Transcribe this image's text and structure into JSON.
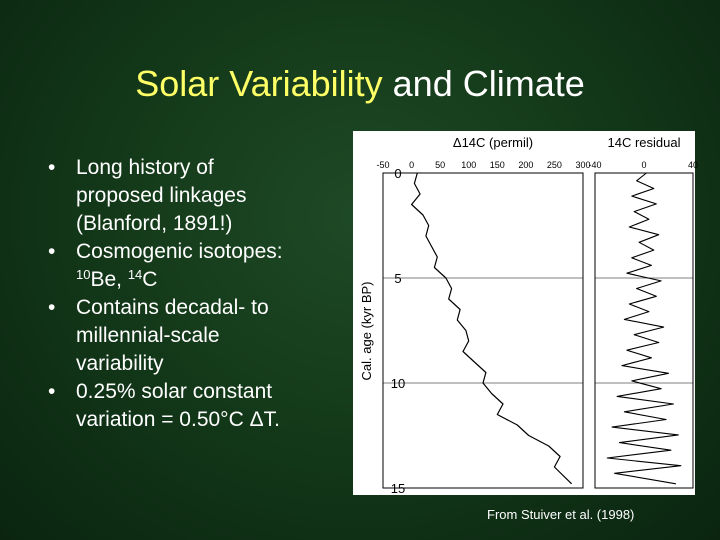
{
  "slide": {
    "title_accent": "Solar Variability",
    "title_rest": " and Climate",
    "bullets": [
      [
        "Long history of",
        "proposed linkages",
        "(Blanford, 1891!)"
      ],
      [
        "Cosmogenic isotopes:"
      ],
      [
        "Contains decadal- to",
        "millennial-scale",
        "variability"
      ],
      [
        "0.25% solar constant",
        "variation = 0.50°C ΔT."
      ]
    ],
    "isotopes": {
      "be_mass": "10",
      "be_symbol": "Be, ",
      "c_mass": "14",
      "c_symbol": "C"
    },
    "bullet_symbol": "•",
    "credit": "From Stuiver et al. (1998)"
  },
  "chart_data": [
    {
      "type": "line",
      "title": "Δ14C (permil)",
      "ylabel": "Cal. age (kyr BP)",
      "xticks": [
        "-50",
        "0",
        "50",
        "100",
        "150",
        "200",
        "250",
        "300"
      ],
      "yticks": [
        "0",
        "5",
        "10",
        "15"
      ],
      "xlim": [
        -50,
        300
      ],
      "ylim": [
        0,
        15
      ],
      "reference_lines_y": [
        5,
        10
      ],
      "series": [
        {
          "x": [
            10,
            5,
            15,
            0,
            20,
            30,
            25,
            35,
            45,
            40,
            60,
            70,
            65,
            85,
            80,
            95,
            100,
            90,
            110,
            130,
            125,
            140,
            160,
            150,
            185,
            205,
            240,
            260,
            250,
            280
          ],
          "y": [
            0,
            0.5,
            1,
            1.5,
            2,
            2.5,
            3,
            3.5,
            4,
            4.5,
            5,
            5.5,
            6,
            6.5,
            7,
            7.5,
            8,
            8.5,
            9,
            9.5,
            10,
            10.5,
            11,
            11.5,
            12,
            12.5,
            13,
            13.5,
            14,
            14.8
          ]
        }
      ]
    },
    {
      "type": "line",
      "title": "14C residual",
      "xticks": [
        "-40",
        "0",
        "40"
      ],
      "xlim": [
        -40,
        40
      ],
      "ylim": [
        0,
        15
      ],
      "reference_lines_y": [
        5,
        10
      ],
      "series": [
        {
          "x": [
            2,
            -6,
            8,
            -10,
            10,
            -8,
            4,
            -12,
            12,
            -4,
            8,
            -10,
            6,
            -14,
            14,
            -6,
            10,
            -12,
            4,
            -16,
            16,
            -8,
            12,
            -14,
            6,
            -18,
            20,
            -10,
            14,
            -22,
            24,
            -16,
            18,
            -26,
            28,
            -20,
            22,
            -30,
            30,
            -24,
            26
          ],
          "y": [
            0,
            0.37,
            0.74,
            1.1,
            1.47,
            1.84,
            2.2,
            2.57,
            2.94,
            3.3,
            3.67,
            4.04,
            4.4,
            4.77,
            5.14,
            5.5,
            5.87,
            6.24,
            6.6,
            6.97,
            7.34,
            7.7,
            8.07,
            8.44,
            8.8,
            9.17,
            9.54,
            9.9,
            10.27,
            10.64,
            11.0,
            11.37,
            11.74,
            12.1,
            12.47,
            12.84,
            13.2,
            13.57,
            13.94,
            14.3,
            14.8
          ]
        }
      ]
    }
  ]
}
